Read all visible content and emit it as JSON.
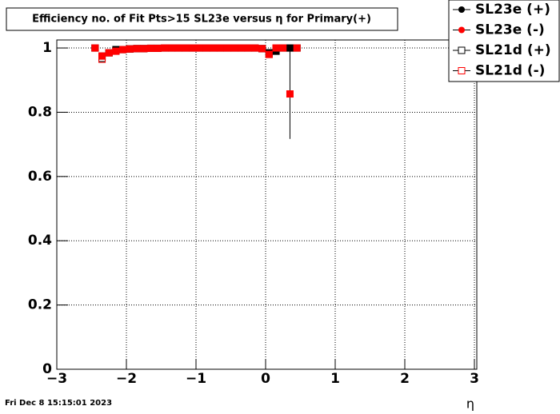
{
  "chart_data": {
    "type": "scatter",
    "title": "Efficiency no. of Fit Pts>15 SL23e versus η for Primary(+)",
    "x_label": "η",
    "timestamp": "Fri Dec  8 15:15:01 2023",
    "x": [
      -2.45,
      -2.35,
      -2.25,
      -2.15,
      -2.05,
      -1.95,
      -1.85,
      -1.75,
      -1.65,
      -1.55,
      -1.45,
      -1.35,
      -1.25,
      -1.15,
      -1.05,
      -0.95,
      -0.85,
      -0.75,
      -0.65,
      -0.55,
      -0.45,
      -0.35,
      -0.25,
      -0.15,
      -0.05,
      0.05,
      0.15,
      0.25,
      0.35,
      0.45
    ],
    "series": [
      {
        "name": "SL23e (+)",
        "color": "#000000",
        "marker": "filled",
        "values": [
          1,
          0.975,
          0.985,
          0.995,
          0.995,
          0.997,
          0.998,
          0.998,
          0.999,
          0.999,
          1,
          1,
          1,
          1,
          1,
          1,
          1,
          1,
          1,
          1,
          1,
          1,
          1,
          1,
          0.998,
          0.985,
          0.99,
          1,
          1,
          1
        ]
      },
      {
        "name": "SL23e (-)",
        "color": "#ff0000",
        "marker": "filled",
        "values": [
          1,
          0.975,
          0.985,
          0.99,
          0.995,
          0.997,
          0.998,
          0.998,
          0.999,
          0.999,
          1,
          1,
          1,
          1,
          1,
          1,
          1,
          1,
          1,
          1,
          1,
          1,
          1,
          1,
          0.998,
          0.98,
          1,
          1,
          0.857,
          1
        ],
        "errors": [
          0,
          0,
          0,
          0,
          0,
          0,
          0,
          0,
          0,
          0,
          0,
          0,
          0,
          0,
          0,
          0,
          0,
          0,
          0,
          0,
          0,
          0,
          0,
          0,
          0,
          0,
          0,
          0,
          0.14,
          0
        ]
      },
      {
        "name": "SL21d (+)",
        "color": "#000000",
        "marker": "open",
        "values": [
          1,
          0.968,
          0.985,
          0.995,
          0.995,
          0.997,
          0.998,
          0.998,
          0.999,
          0.999,
          1,
          1,
          1,
          1,
          1,
          1,
          1,
          1,
          1,
          1,
          1,
          1,
          1,
          1,
          0.998,
          0.985,
          0.99,
          1,
          1,
          1
        ]
      },
      {
        "name": "SL21d (-)",
        "color": "#ff0000",
        "marker": "open",
        "values": [
          1,
          0.965,
          0.985,
          0.99,
          0.995,
          0.997,
          0.998,
          0.998,
          0.999,
          0.999,
          1,
          1,
          1,
          1,
          1,
          1,
          1,
          1,
          1,
          1,
          1,
          1,
          1,
          1,
          0.998,
          0.98,
          1,
          1,
          1,
          1
        ]
      }
    ],
    "xlim": [
      -3,
      3
    ],
    "xticks": [
      {
        "value": -3,
        "label": "−3"
      },
      {
        "value": -2,
        "label": "−2"
      },
      {
        "value": -1,
        "label": "−1"
      },
      0,
      1,
      2,
      3
    ],
    "ylim": [
      0,
      1.025
    ],
    "yticks": [
      0,
      0.2,
      0.4,
      0.6,
      0.8,
      1
    ],
    "grid": true,
    "legend": "top-right"
  }
}
